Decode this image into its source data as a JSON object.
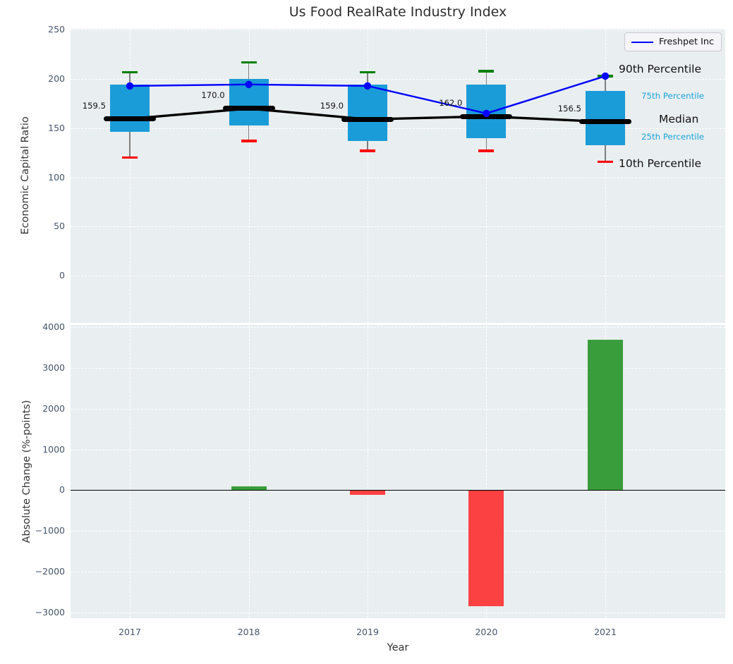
{
  "title": "Us Food RealRate Industry Index",
  "colors": {
    "box_fill": "#1a9cd8",
    "median_line": "#000000",
    "series_line": "#0000ff",
    "whisker": "#7f7f7f",
    "cap_top": "#008000",
    "cap_bottom": "#ff0000",
    "bar_positive": "#3a9d3b",
    "bar_negative": "#fb4141",
    "plot_bg": "#e9eef0",
    "grid": "#ffffff",
    "tick_text": "#44546a",
    "cyan_label": "#1ba3d9",
    "black_label": "#111111"
  },
  "chart_data": [
    {
      "type": "box",
      "title": "Us Food RealRate Industry Index",
      "ylabel": "Economic Capital Ratio",
      "categories": [
        "2017",
        "2018",
        "2019",
        "2020",
        "2021"
      ],
      "yticks": [
        0,
        50,
        100,
        150,
        200,
        250
      ],
      "ylim": [
        -48,
        251
      ],
      "grid": true,
      "boxes": [
        {
          "p10": 120,
          "q25": 146,
          "median": 159.5,
          "q75": 194,
          "p90": 207
        },
        {
          "p10": 137,
          "q25": 153,
          "median": 170.0,
          "q75": 200,
          "p90": 217
        },
        {
          "p10": 127,
          "q25": 137,
          "median": 159.0,
          "q75": 194,
          "p90": 207
        },
        {
          "p10": 127,
          "q25": 140,
          "median": 162.0,
          "q75": 194,
          "p90": 208
        },
        {
          "p10": 116,
          "q25": 133,
          "median": 156.5,
          "q75": 188,
          "p90": 203
        }
      ],
      "median_labels": [
        "159.5",
        "170.0",
        "159.0",
        "162.0",
        "156.5"
      ],
      "series": [
        {
          "name": "Freshpet Inc",
          "values": [
            193,
            194.5,
            193,
            165,
            203
          ]
        }
      ],
      "legend": {
        "label": "Freshpet Inc",
        "position": "upper right"
      },
      "annotations": [
        {
          "text": "90th Percentile",
          "style": "large",
          "color": "black",
          "anchor_value": 210
        },
        {
          "text": "75th Percentile",
          "style": "small",
          "color": "cyan",
          "anchor_value": 183
        },
        {
          "text": "Median",
          "style": "large",
          "color": "black",
          "anchor_value": 159
        },
        {
          "text": "25th Percentile",
          "style": "small",
          "color": "cyan",
          "anchor_value": 141
        },
        {
          "text": "10th Percentile",
          "style": "large",
          "color": "black",
          "anchor_value": 114
        }
      ]
    },
    {
      "type": "bar",
      "ylabel": "Absolute Change (%-points)",
      "xlabel": "Year",
      "categories": [
        "2017",
        "2018",
        "2019",
        "2020",
        "2021"
      ],
      "values": [
        0,
        100,
        -120,
        -2850,
        3700
      ],
      "yticks": [
        -3000,
        -2000,
        -1000,
        0,
        1000,
        2000,
        3000,
        4000
      ],
      "ylim": [
        -3140,
        4055
      ],
      "grid": true
    }
  ]
}
